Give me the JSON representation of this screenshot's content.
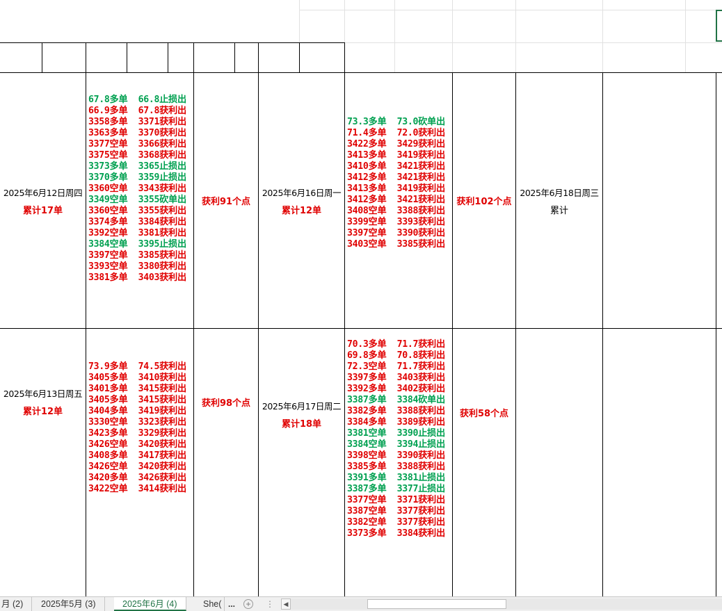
{
  "sheet": {
    "rows": [
      {
        "date_a": "2025年6月12日周四",
        "count_a": "累计17单",
        "trades_a": [
          {
            "text": "67.8多单  66.8止损出",
            "c": "g"
          },
          {
            "text": "66.9多单  67.8获利出",
            "c": "r"
          },
          {
            "text": "3358多单  3371获利出",
            "c": "r"
          },
          {
            "text": "3363多单  3370获利出",
            "c": "r"
          },
          {
            "text": "3377空单  3366获利出",
            "c": "r"
          },
          {
            "text": "3375空单  3368获利出",
            "c": "r"
          },
          {
            "text": "3373多单  3365止损出",
            "c": "g"
          },
          {
            "text": "3370多单  3359止损出",
            "c": "g"
          },
          {
            "text": "3360空单  3343获利出",
            "c": "r"
          },
          {
            "text": "3349空单  3355砍单出",
            "c": "g"
          },
          {
            "text": "3360空单  3355获利出",
            "c": "r"
          },
          {
            "text": "3374多单  3384获利出",
            "c": "r"
          },
          {
            "text": "3392空单  3381获利出",
            "c": "r"
          },
          {
            "text": "3384空单  3395止损出",
            "c": "g"
          },
          {
            "text": "3397空单  3385获利出",
            "c": "r"
          },
          {
            "text": "3393空单  3380获利出",
            "c": "r"
          },
          {
            "text": "3381多单  3403获利出",
            "c": "r"
          }
        ],
        "profit_a": "获利91个点",
        "date_b": "2025年6月16日周一",
        "count_b": "累计12单",
        "trades_b": [
          {
            "text": "73.3多单  73.0砍单出",
            "c": "g"
          },
          {
            "text": "71.4多单  72.0获利出",
            "c": "r"
          },
          {
            "text": "3422多单  3429获利出",
            "c": "r"
          },
          {
            "text": "3413多单  3419获利出",
            "c": "r"
          },
          {
            "text": "3410多单  3421获利出",
            "c": "r"
          },
          {
            "text": "3412多单  3421获利出",
            "c": "r"
          },
          {
            "text": "3413多单  3419获利出",
            "c": "r"
          },
          {
            "text": "3412多单  3421获利出",
            "c": "r"
          },
          {
            "text": "3408空单  3388获利出",
            "c": "r"
          },
          {
            "text": "3399空单  3393获利出",
            "c": "r"
          },
          {
            "text": "3397空单  3390获利出",
            "c": "r"
          },
          {
            "text": "3403空单  3385获利出",
            "c": "r"
          }
        ],
        "profit_b": "获利102个点",
        "date_c": "2025年6月18日周三",
        "count_c": "累计"
      },
      {
        "date_a": "2025年6月13日周五",
        "count_a": "累计12单",
        "trades_a": [
          {
            "text": "73.9多单  74.5获利出",
            "c": "r"
          },
          {
            "text": "3405多单  3410获利出",
            "c": "r"
          },
          {
            "text": "3401多单  3415获利出",
            "c": "r"
          },
          {
            "text": "3405多单  3415获利出",
            "c": "r"
          },
          {
            "text": "3404多单  3419获利出",
            "c": "r"
          },
          {
            "text": "3330空单  3323获利出",
            "c": "r"
          },
          {
            "text": "3423多单  3329获利出",
            "c": "r"
          },
          {
            "text": "3426空单  3420获利出",
            "c": "r"
          },
          {
            "text": "3408多单  3417获利出",
            "c": "r"
          },
          {
            "text": "3426空单  3420获利出",
            "c": "r"
          },
          {
            "text": "3420多单  3426获利出",
            "c": "r"
          },
          {
            "text": "3422空单  3414获利出",
            "c": "r"
          }
        ],
        "profit_a": "获利98个点",
        "date_b": "2025年6月17日周二",
        "count_b": "累计18单",
        "trades_b": [
          {
            "text": "70.3多单  71.7获利出",
            "c": "r"
          },
          {
            "text": "69.8多单  70.8获利出",
            "c": "r"
          },
          {
            "text": "72.3空单  71.7获利出",
            "c": "r"
          },
          {
            "text": "3397多单  3403获利出",
            "c": "r"
          },
          {
            "text": "3392多单  3402获利出",
            "c": "r"
          },
          {
            "text": "3387多单  3384砍单出",
            "c": "g"
          },
          {
            "text": "3382多单  3388获利出",
            "c": "r"
          },
          {
            "text": "3384多单  3389获利出",
            "c": "r"
          },
          {
            "text": "3381空单  3390止损出",
            "c": "g"
          },
          {
            "text": "3384空单  3394止损出",
            "c": "g"
          },
          {
            "text": "3398空单  3390获利出",
            "c": "r"
          },
          {
            "text": "3385多单  3388获利出",
            "c": "r"
          },
          {
            "text": "3391多单  3381止损出",
            "c": "g"
          },
          {
            "text": "3387多单  3377止损出",
            "c": "g"
          },
          {
            "text": "3377空单  3371获利出",
            "c": "r"
          },
          {
            "text": "3387空单  3377获利出",
            "c": "r"
          },
          {
            "text": "3382空单  3377获利出",
            "c": "r"
          },
          {
            "text": "3373多单  3384获利出",
            "c": "r"
          }
        ],
        "profit_b": "获利58个点",
        "date_c": "",
        "count_c": ""
      }
    ]
  },
  "tabs": {
    "tab1": "月 (2)",
    "tab2": "2025年5月 (3)",
    "tab3": "2025年6月 (4)",
    "tab4": "She(",
    "more": "...",
    "add": "+",
    "options": "⋮",
    "scroll_left": "◀"
  },
  "colors": {
    "profit_red": "#e00000",
    "loss_green": "#00a050",
    "excel_green": "#217346"
  }
}
